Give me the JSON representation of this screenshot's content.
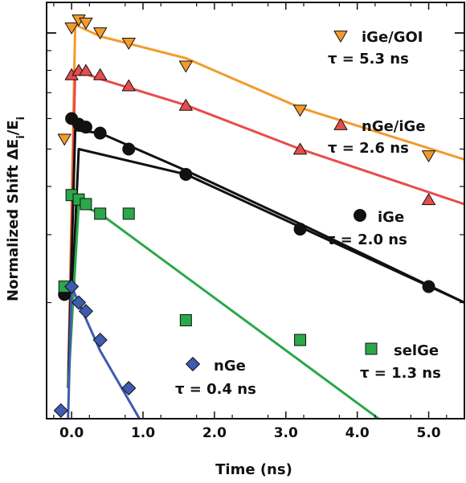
{
  "chart_data": {
    "type": "scatter",
    "xlabel": "Time (ns)",
    "ylabel": "Normalized Shift ΔE",
    "ylabel_sub1": "i",
    "ylabel_mid": "/E",
    "ylabel_sub2": "i",
    "y_scale": "log",
    "xlim": [
      -0.35,
      5.5
    ],
    "ylim": [
      0.1,
      1.2
    ],
    "x_ticks": [
      0.0,
      1.0,
      2.0,
      3.0,
      4.0,
      5.0
    ],
    "x_tick_labels": [
      "0.0",
      "1.0",
      "2.0",
      "3.0",
      "4.0",
      "5.0"
    ],
    "y_decades": [
      0.1,
      1.0
    ],
    "grid": false,
    "legend_position": "inside-right",
    "series": [
      {
        "name": "iGe/GOI",
        "tau_label": "τ = 5.3 ns",
        "color": "#f39a2c",
        "marker": "triangle-down",
        "points": [
          [
            -0.1,
            0.53
          ],
          [
            0.0,
            1.03
          ],
          [
            0.1,
            1.08
          ],
          [
            0.2,
            1.06
          ],
          [
            0.4,
            1.0
          ],
          [
            0.8,
            0.94
          ],
          [
            1.6,
            0.82
          ],
          [
            3.2,
            0.63
          ],
          [
            5.0,
            0.48
          ]
        ],
        "fit": [
          [
            -0.05,
            0.12
          ],
          [
            0.05,
            1.05
          ],
          [
            0.4,
            0.98
          ],
          [
            1.6,
            0.86
          ],
          [
            3.2,
            0.64
          ],
          [
            5.5,
            0.47
          ]
        ]
      },
      {
        "name": "nGe/iGe",
        "tau_label": "τ = 2.6 ns",
        "color": "#e84c4c",
        "marker": "triangle-up",
        "points": [
          [
            0.0,
            0.78
          ],
          [
            0.1,
            0.8
          ],
          [
            0.2,
            0.8
          ],
          [
            0.4,
            0.78
          ],
          [
            0.8,
            0.73
          ],
          [
            1.6,
            0.65
          ],
          [
            3.2,
            0.5
          ],
          [
            5.0,
            0.37
          ]
        ],
        "fit": [
          [
            -0.05,
            0.12
          ],
          [
            0.05,
            0.8
          ],
          [
            0.4,
            0.76
          ],
          [
            1.6,
            0.65
          ],
          [
            3.2,
            0.5
          ],
          [
            5.5,
            0.36
          ]
        ]
      },
      {
        "name": "iGe",
        "tau_label": "τ = 2.0 ns",
        "color": "#111111",
        "marker": "circle",
        "points": [
          [
            -0.1,
            0.21
          ],
          [
            0.0,
            0.6
          ],
          [
            0.1,
            0.58
          ],
          [
            0.2,
            0.57
          ],
          [
            0.4,
            0.55
          ],
          [
            0.8,
            0.5
          ],
          [
            1.6,
            0.43
          ],
          [
            3.2,
            0.31
          ],
          [
            5.0,
            0.22
          ]
        ],
        "fit": [
          [
            -0.05,
            0.12
          ],
          [
            0.05,
            0.56
          ],
          [
            0.4,
            0.55
          ],
          [
            1.6,
            0.44
          ],
          [
            3.2,
            0.32
          ],
          [
            5.5,
            0.2
          ]
        ],
        "fit2": [
          [
            -0.05,
            0.12
          ],
          [
            0.1,
            0.5
          ],
          [
            1.6,
            0.43
          ],
          [
            5.5,
            0.2
          ]
        ]
      },
      {
        "name": "selGe",
        "tau_label": "τ = 1.3 ns",
        "color": "#2aa84a",
        "marker": "square",
        "points": [
          [
            -0.1,
            0.22
          ],
          [
            0.0,
            0.38
          ],
          [
            0.1,
            0.37
          ],
          [
            0.2,
            0.36
          ],
          [
            0.4,
            0.34
          ],
          [
            0.8,
            0.34
          ],
          [
            1.6,
            0.18
          ],
          [
            3.2,
            0.16
          ]
        ],
        "fit": [
          [
            -0.05,
            0.12
          ],
          [
            0.1,
            0.36
          ],
          [
            0.4,
            0.34
          ],
          [
            4.3,
            0.1
          ]
        ]
      },
      {
        "name": "nGe",
        "tau_label": "τ = 0.4 ns",
        "color": "#3f5bb0",
        "marker": "diamond",
        "points": [
          [
            -0.15,
            0.105
          ],
          [
            0.0,
            0.22
          ],
          [
            0.1,
            0.2
          ],
          [
            0.2,
            0.19
          ],
          [
            0.4,
            0.16
          ],
          [
            0.8,
            0.12
          ]
        ],
        "fit": [
          [
            -0.05,
            0.1
          ],
          [
            0.0,
            0.22
          ],
          [
            0.4,
            0.15
          ],
          [
            0.95,
            0.1
          ]
        ]
      }
    ]
  }
}
